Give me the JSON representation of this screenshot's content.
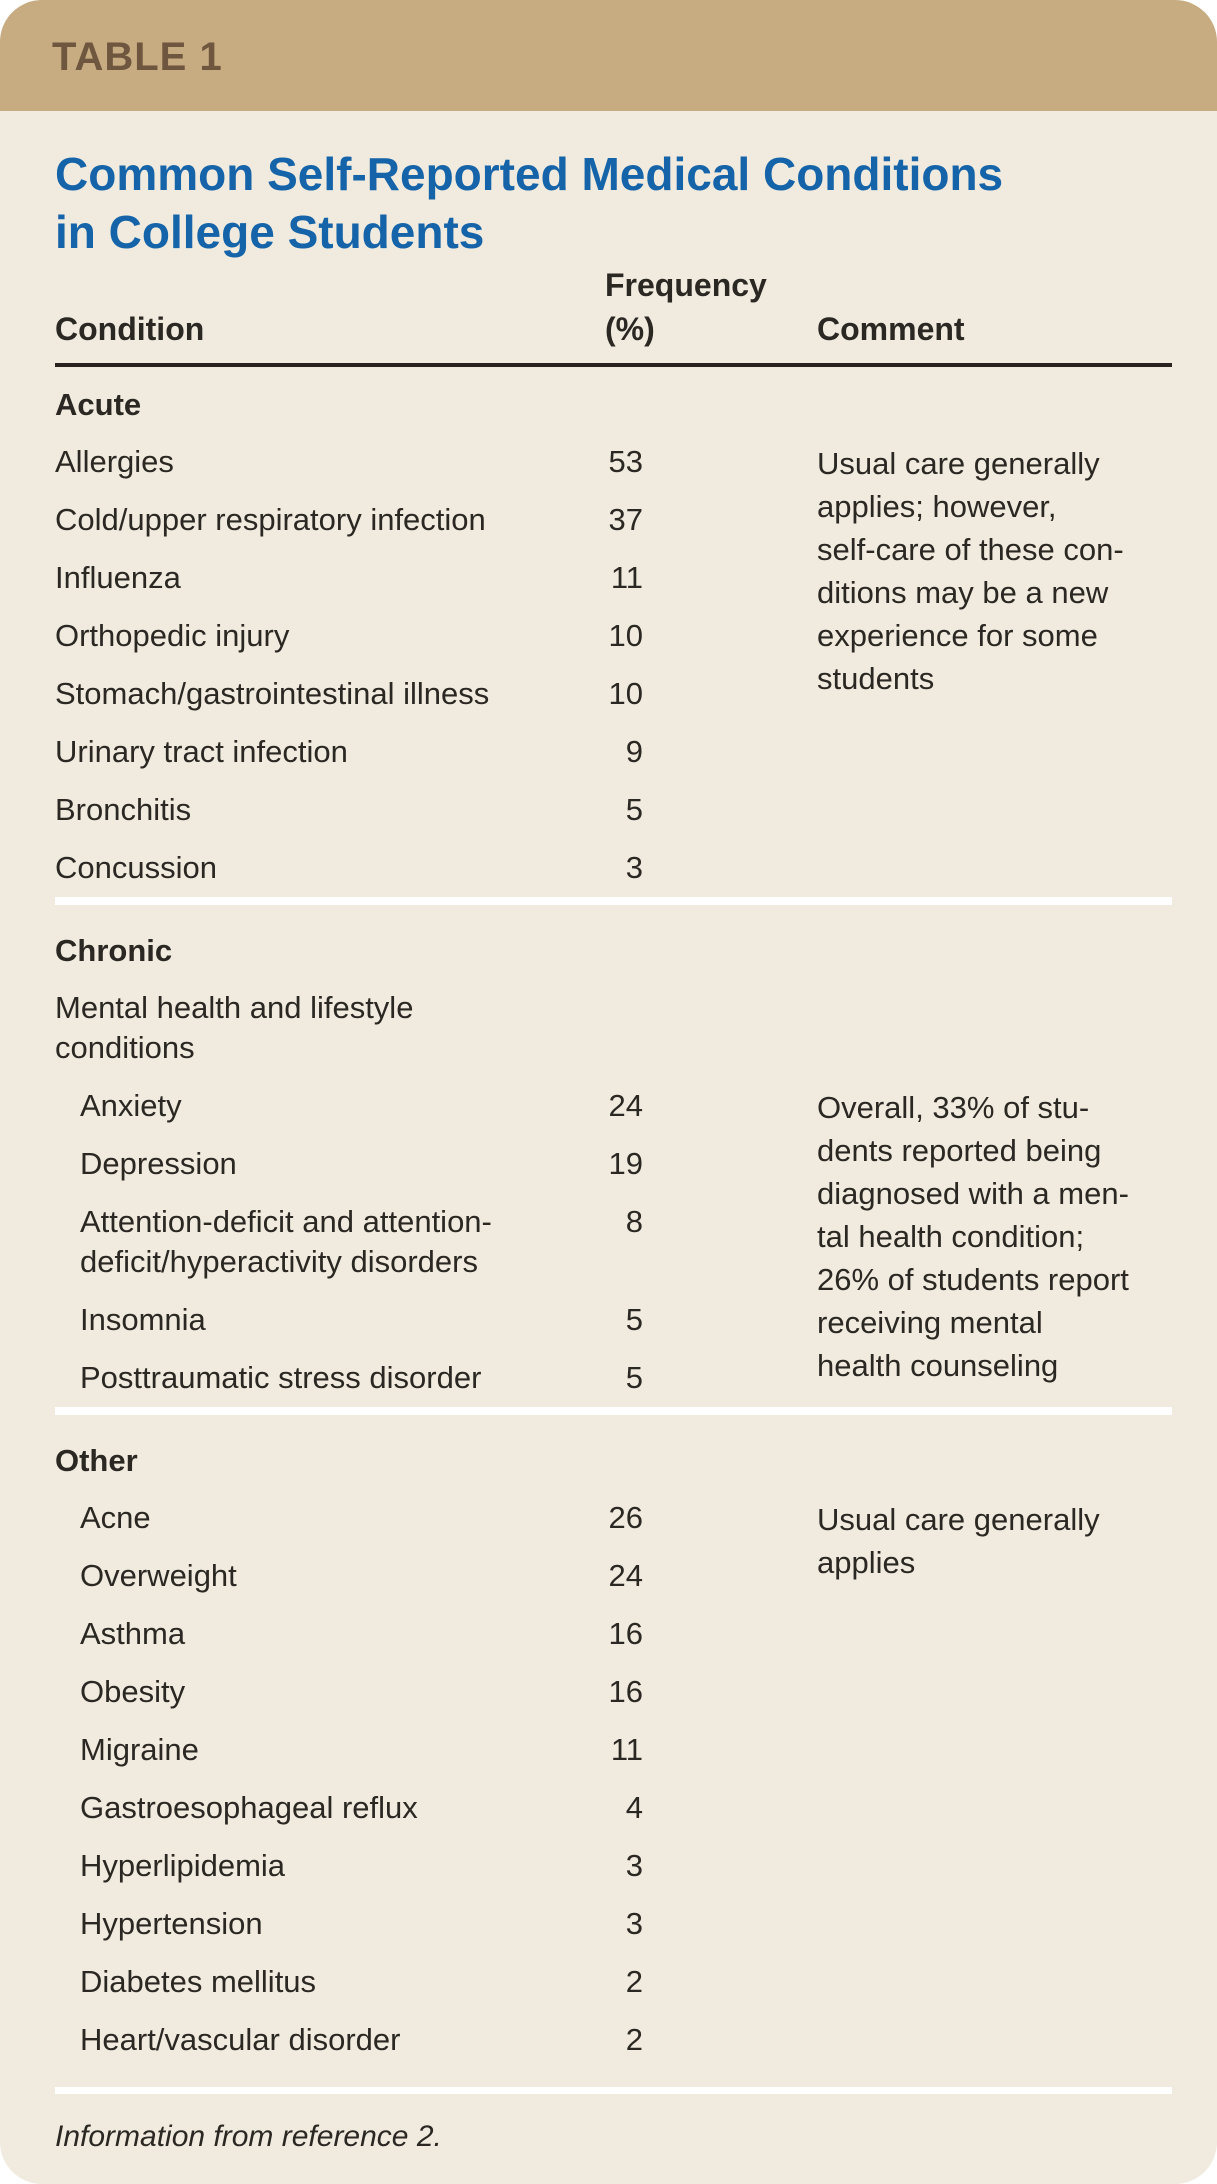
{
  "table_label": "TABLE 1",
  "title": "Common Self-Reported Medical Conditions\nin College Students",
  "columns": {
    "condition": "Condition",
    "frequency": "Frequency\n(%)",
    "comment": "Comment"
  },
  "sections": [
    {
      "label": "Acute",
      "comment": "Usual care generally\napplies; however,\nself-care of these con-\nditions may be a new\nexperience for some\nstudents",
      "rows": [
        {
          "condition": "Allergies",
          "frequency": "53"
        },
        {
          "condition": "Cold/upper respiratory infection",
          "frequency": "37"
        },
        {
          "condition": "Influenza",
          "frequency": "11"
        },
        {
          "condition": "Orthopedic injury",
          "frequency": "10"
        },
        {
          "condition": "Stomach/gastrointestinal illness",
          "frequency": "10"
        },
        {
          "condition": "Urinary tract infection",
          "frequency": "9"
        },
        {
          "condition": "Bronchitis",
          "frequency": "5"
        },
        {
          "condition": "Concussion",
          "frequency": "3"
        }
      ]
    },
    {
      "label": "Chronic",
      "subheader": "Mental health and lifestyle conditions",
      "comment": "Overall, 33% of stu-\ndents reported being\ndiagnosed with a men-\ntal health condition;\n26% of students report\nreceiving mental\nhealth counseling",
      "rows": [
        {
          "condition": "Anxiety",
          "frequency": "24"
        },
        {
          "condition": "Depression",
          "frequency": "19"
        },
        {
          "condition": "Attention-deficit and attention-deficit/hyperactivity disorders",
          "frequency": "8"
        },
        {
          "condition": "Insomnia",
          "frequency": "5"
        },
        {
          "condition": "Posttraumatic stress disorder",
          "frequency": "5"
        }
      ]
    },
    {
      "label": "Other",
      "comment": "Usual care generally\napplies",
      "rows": [
        {
          "condition": "Acne",
          "frequency": "26"
        },
        {
          "condition": "Overweight",
          "frequency": "24"
        },
        {
          "condition": "Asthma",
          "frequency": "16"
        },
        {
          "condition": "Obesity",
          "frequency": "16"
        },
        {
          "condition": "Migraine",
          "frequency": "11"
        },
        {
          "condition": "Gastroesophageal reflux",
          "frequency": "4"
        },
        {
          "condition": "Hyperlipidemia",
          "frequency": "3"
        },
        {
          "condition": "Hypertension",
          "frequency": "3"
        },
        {
          "condition": "Diabetes mellitus",
          "frequency": "2"
        },
        {
          "condition": "Heart/vascular disorder",
          "frequency": "2"
        }
      ]
    }
  ],
  "footnote": "Information from reference 2.",
  "colors": {
    "band_background": "#c7ab81",
    "band_text": "#6e563f",
    "card_background": "#f0ebde",
    "title_blue": "#1563a8",
    "body_text": "#2b2722",
    "header_rule": "#28231e",
    "section_divider": "#ffffff"
  }
}
